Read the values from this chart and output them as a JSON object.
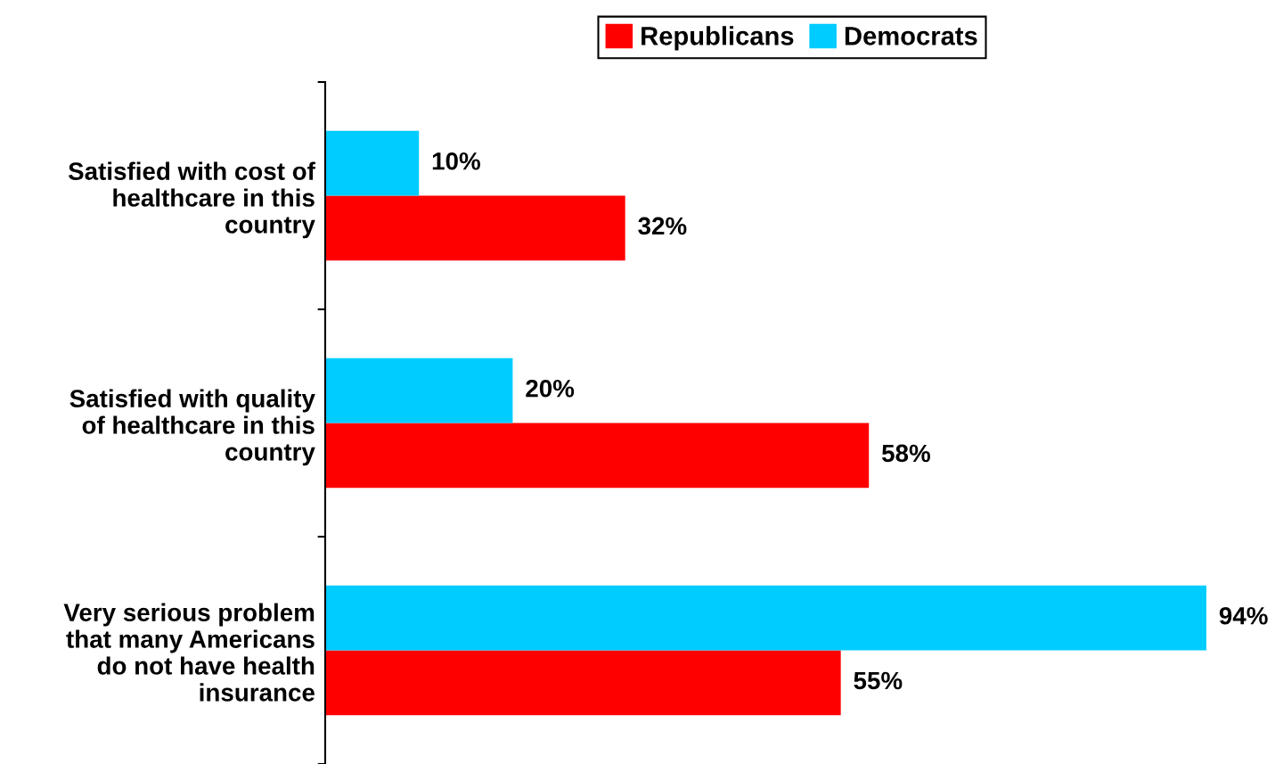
{
  "chart_data": {
    "type": "bar",
    "orientation": "horizontal",
    "categories": [
      "Satisfied with cost of\nhealthcare in this\ncountry",
      "Satisfied with quality\nof healthcare in this\ncountry",
      "Very serious problem\nthat many Americans\ndo not have health\ninsurance"
    ],
    "series": [
      {
        "name": "Republicans",
        "color": "#ff0000",
        "values": [
          32,
          58,
          55
        ],
        "value_labels": [
          "32%",
          "58%",
          "55%"
        ]
      },
      {
        "name": "Democrats",
        "color": "#00ccff",
        "values": [
          10,
          20,
          94
        ],
        "value_labels": [
          "10%",
          "20%",
          "94%"
        ]
      }
    ],
    "legend": "top",
    "grid": false
  }
}
